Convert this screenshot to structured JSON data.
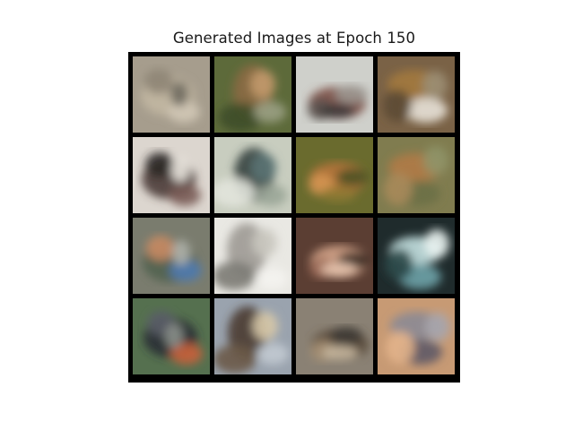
{
  "title": "Generated Images at Epoch 150",
  "grid": {
    "rows": 4,
    "cols": 4,
    "frame_color": "#000000",
    "tiles": [
      {
        "bg": "#a69d8d",
        "blobs": [
          "#c2b7a2",
          "#8e8576",
          "#d1c8b6",
          "#6f6a60"
        ]
      },
      {
        "bg": "#5d6a3a",
        "blobs": [
          "#8b6a44",
          "#c39a6c",
          "#3f4d27",
          "#9aa083"
        ]
      },
      {
        "bg": "#cfd0cb",
        "blobs": [
          "#7a4e43",
          "#5c5451",
          "#9b9690",
          "#3e3a38"
        ]
      },
      {
        "bg": "#7a6246",
        "blobs": [
          "#a3793f",
          "#e8e2d8",
          "#5c4a34",
          "#9b8e74"
        ]
      },
      {
        "bg": "#dcd6cf",
        "blobs": [
          "#4a3a36",
          "#2c2928",
          "#7a5c56",
          "#eae5df"
        ]
      },
      {
        "bg": "#c8cdbf",
        "blobs": [
          "#33413f",
          "#5b7474",
          "#e2e4dc",
          "#9aa597"
        ]
      },
      {
        "bg": "#6a6b2e",
        "blobs": [
          "#b6733a",
          "#d49552",
          "#4b5222",
          "#8f7a33"
        ]
      },
      {
        "bg": "#807c4f",
        "blobs": [
          "#b07a47",
          "#6c7045",
          "#a88a5a",
          "#8f9468"
        ]
      },
      {
        "bg": "#7a7c6e",
        "blobs": [
          "#52624f",
          "#c98b63",
          "#4e7ab0",
          "#b0b3ab"
        ]
      },
      {
        "bg": "#e9e8e3",
        "blobs": [
          "#9d9a93",
          "#c9c6bf",
          "#7b7a74",
          "#f4f3ef"
        ]
      },
      {
        "bg": "#5b3e33",
        "blobs": [
          "#d5a58b",
          "#9b6a58",
          "#3a2a24",
          "#e6c3ad"
        ]
      },
      {
        "bg": "#1f2b2c",
        "blobs": [
          "#c4e1e1",
          "#6ea3a8",
          "#2e4a4a",
          "#e9f2ef"
        ]
      },
      {
        "bg": "#55704f",
        "blobs": [
          "#2a2c33",
          "#5a5d68",
          "#c9603a",
          "#8a8f8a"
        ]
      },
      {
        "bg": "#9aa3ae",
        "blobs": [
          "#4a3c32",
          "#d8c9a8",
          "#6b5a48",
          "#c2cad2"
        ]
      },
      {
        "bg": "#8a8174",
        "blobs": [
          "#5a4a3a",
          "#a48f73",
          "#3e3a34",
          "#c7b79f"
        ]
      },
      {
        "bg": "#c79a74",
        "blobs": [
          "#8b8a93",
          "#5e5a66",
          "#e3b48b",
          "#a8a6ad"
        ]
      }
    ]
  }
}
